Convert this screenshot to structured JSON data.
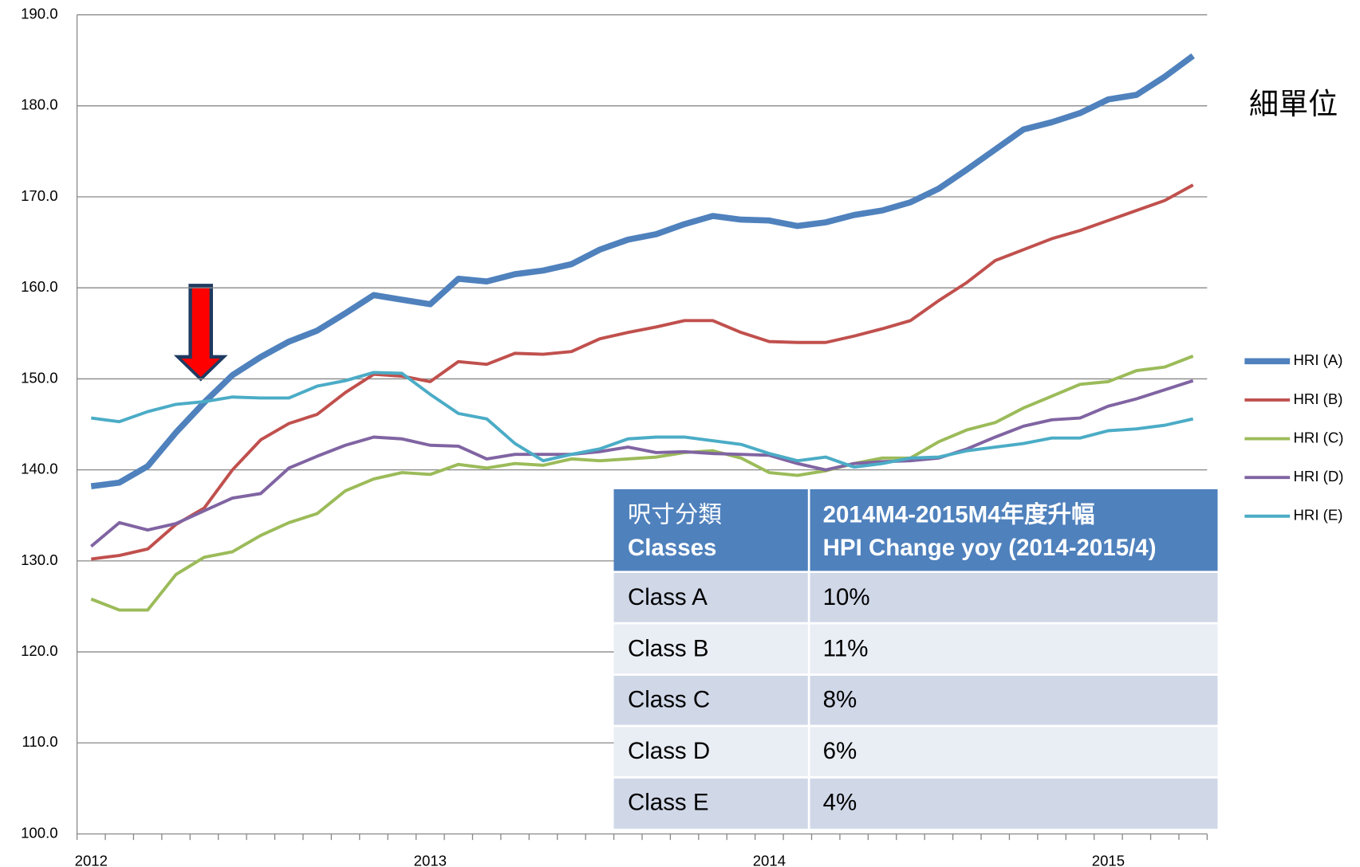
{
  "chart_data": {
    "type": "line",
    "annotation": "細單位",
    "categories": [
      "2012",
      null,
      null,
      null,
      null,
      null,
      null,
      null,
      null,
      null,
      null,
      null,
      "2013",
      null,
      null,
      null,
      null,
      null,
      null,
      null,
      null,
      null,
      null,
      null,
      "2014",
      null,
      null,
      null,
      null,
      null,
      null,
      null,
      null,
      null,
      null,
      null,
      "2015",
      null,
      null,
      null
    ],
    "ylim": [
      100,
      190
    ],
    "yticks": [
      {
        "value": 100,
        "label": "100.0"
      },
      {
        "value": 110,
        "label": "110.0"
      },
      {
        "value": 120,
        "label": "120.0"
      },
      {
        "value": 130,
        "label": "130.0"
      },
      {
        "value": 140,
        "label": "140.0"
      },
      {
        "value": 150,
        "label": "150.0"
      },
      {
        "value": 160,
        "label": "160.0"
      },
      {
        "value": 170,
        "label": "170.0"
      },
      {
        "value": 180,
        "label": "180.0"
      },
      {
        "value": 190,
        "label": "190.0"
      }
    ],
    "grid": true,
    "legend": "right",
    "series": [
      {
        "name": "HRI (A)",
        "color": "#4f81bd",
        "values": [
          138.2,
          138.6,
          140.4,
          144.1,
          147.4,
          150.4,
          152.4,
          154.1,
          155.3,
          157.2,
          159.2,
          158.7,
          158.2,
          161.0,
          160.7,
          161.5,
          161.9,
          162.6,
          164.2,
          165.3,
          165.9,
          167.0,
          167.9,
          167.5,
          167.4,
          166.8,
          167.2,
          168.0,
          168.5,
          169.4,
          170.9,
          173.0,
          175.2,
          177.4,
          178.2,
          179.2,
          180.7,
          181.2,
          183.2,
          185.5
        ]
      },
      {
        "name": "HRI (B)",
        "color": "#c0504d",
        "values": [
          130.2,
          130.6,
          131.3,
          134.0,
          135.8,
          140.0,
          143.3,
          145.1,
          146.1,
          148.5,
          150.5,
          150.3,
          149.7,
          151.9,
          151.6,
          152.8,
          152.7,
          153.0,
          154.4,
          155.1,
          155.7,
          156.4,
          156.4,
          155.1,
          154.1,
          154.0,
          154.0,
          154.7,
          155.5,
          156.4,
          158.6,
          160.6,
          163.0,
          164.2,
          165.4,
          166.3,
          167.4,
          168.5,
          169.6,
          171.3
        ]
      },
      {
        "name": "HRI (C)",
        "color": "#9bbb59",
        "values": [
          125.8,
          124.6,
          124.6,
          128.5,
          130.4,
          131.0,
          132.8,
          134.2,
          135.2,
          137.7,
          139.0,
          139.7,
          139.5,
          140.6,
          140.2,
          140.7,
          140.5,
          141.2,
          141.0,
          141.2,
          141.4,
          141.9,
          142.1,
          141.3,
          139.7,
          139.4,
          139.9,
          140.7,
          141.3,
          141.3,
          143.1,
          144.4,
          145.2,
          146.8,
          148.1,
          149.4,
          149.7,
          150.9,
          151.3,
          152.5
        ]
      },
      {
        "name": "HRI (D)",
        "color": "#8064a2",
        "values": [
          131.6,
          134.2,
          133.4,
          134.1,
          135.5,
          136.9,
          137.4,
          140.2,
          141.5,
          142.7,
          143.6,
          143.4,
          142.7,
          142.6,
          141.2,
          141.7,
          141.7,
          141.7,
          142.0,
          142.5,
          141.9,
          142.0,
          141.8,
          141.7,
          141.6,
          140.7,
          140.0,
          140.7,
          140.9,
          141.0,
          141.3,
          142.3,
          143.6,
          144.8,
          145.5,
          145.7,
          147.0,
          147.8,
          148.8,
          149.8
        ]
      },
      {
        "name": "HRI (E)",
        "color": "#4bacc6",
        "values": [
          145.7,
          145.3,
          146.4,
          147.2,
          147.5,
          148.0,
          147.9,
          147.9,
          149.2,
          149.8,
          150.7,
          150.6,
          148.3,
          146.2,
          145.6,
          142.9,
          141.0,
          141.7,
          142.3,
          143.4,
          143.6,
          143.6,
          143.2,
          142.8,
          141.8,
          141.0,
          141.4,
          140.3,
          140.7,
          141.3,
          141.4,
          142.1,
          142.5,
          142.9,
          143.5,
          143.5,
          144.3,
          144.5,
          144.9,
          145.6
        ]
      }
    ],
    "table": {
      "header": [
        [
          "呎寸分類",
          "Classes"
        ],
        [
          "2014M4-2015M4年度升幅",
          "HPI Change yoy (2014-2015/4)"
        ]
      ],
      "rows": [
        [
          "Class A",
          "10%"
        ],
        [
          "Class B",
          "11%"
        ],
        [
          "Class C",
          "8%"
        ],
        [
          "Class D",
          "6%"
        ],
        [
          "Class E",
          "4%"
        ]
      ]
    }
  }
}
